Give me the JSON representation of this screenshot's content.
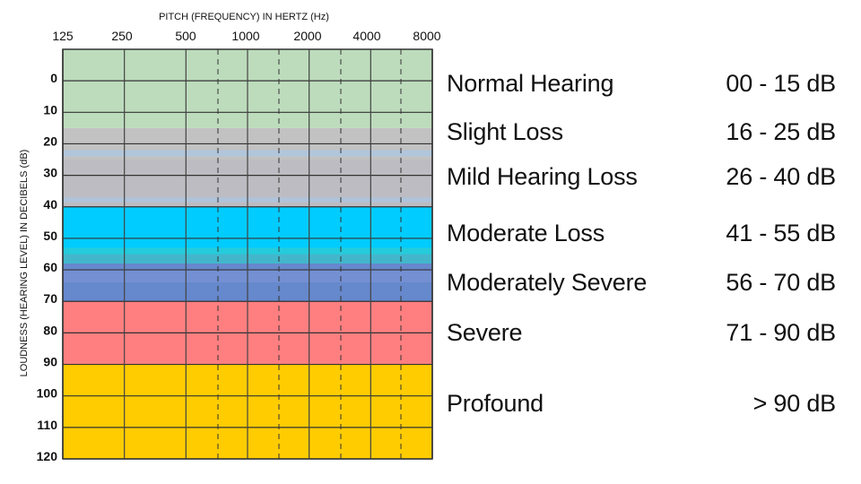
{
  "chart_data": {
    "type": "heatmap",
    "title": "PITCH (FREQUENCY) IN HERTZ (Hz)",
    "xlabel": "PITCH (FREQUENCY) IN HERTZ (Hz)",
    "ylabel": "LOUDNESS (HEARING LEVEL) IN DECIBELS (dB)",
    "x_scale": "log2",
    "x_ticks": [
      125,
      250,
      500,
      1000,
      2000,
      4000,
      8000
    ],
    "x_tick_labels": [
      "125",
      "250",
      "500",
      "1000",
      "2000",
      "4000",
      "8000"
    ],
    "x_minor_dashed": [
      750,
      1500,
      3000,
      6000
    ],
    "y_ticks": [
      0,
      10,
      20,
      30,
      40,
      50,
      60,
      70,
      80,
      90,
      100,
      110,
      120
    ],
    "y_tick_labels": [
      "0",
      "10",
      "20",
      "30",
      "40",
      "50",
      "60",
      "70",
      "80",
      "90",
      "100",
      "110",
      "120"
    ],
    "ylim": [
      -10,
      120
    ],
    "y_inverted": true,
    "grid": true,
    "bands": [
      {
        "name": "Normal Hearing",
        "range": "00 - 15 dB",
        "from": -10,
        "to": 15,
        "color": "#bddcbc"
      },
      {
        "name": "Slight Loss",
        "range": "16 - 25 dB",
        "from": 15,
        "to": 25,
        "color": "#c2c2c2"
      },
      {
        "name": "Mild Hearing Loss",
        "range": "26 - 40 dB",
        "from": 25,
        "to": 40,
        "color": "#bcbcc2"
      },
      {
        "name": "Moderate Loss",
        "range": "41 - 55 dB",
        "from": 40,
        "to": 55,
        "color": "#00ccff"
      },
      {
        "name": "Moderately Severe",
        "range": "56 - 70 dB",
        "from": 55,
        "to": 70,
        "color": "#6688cc"
      },
      {
        "name": "Severe",
        "range": "71 - 90 dB",
        "from": 70,
        "to": 90,
        "color": "#ff7f80"
      },
      {
        "name": "Profound",
        "range": "> 90 dB",
        "from": 90,
        "to": 120,
        "color": "#ffcc00"
      }
    ]
  }
}
